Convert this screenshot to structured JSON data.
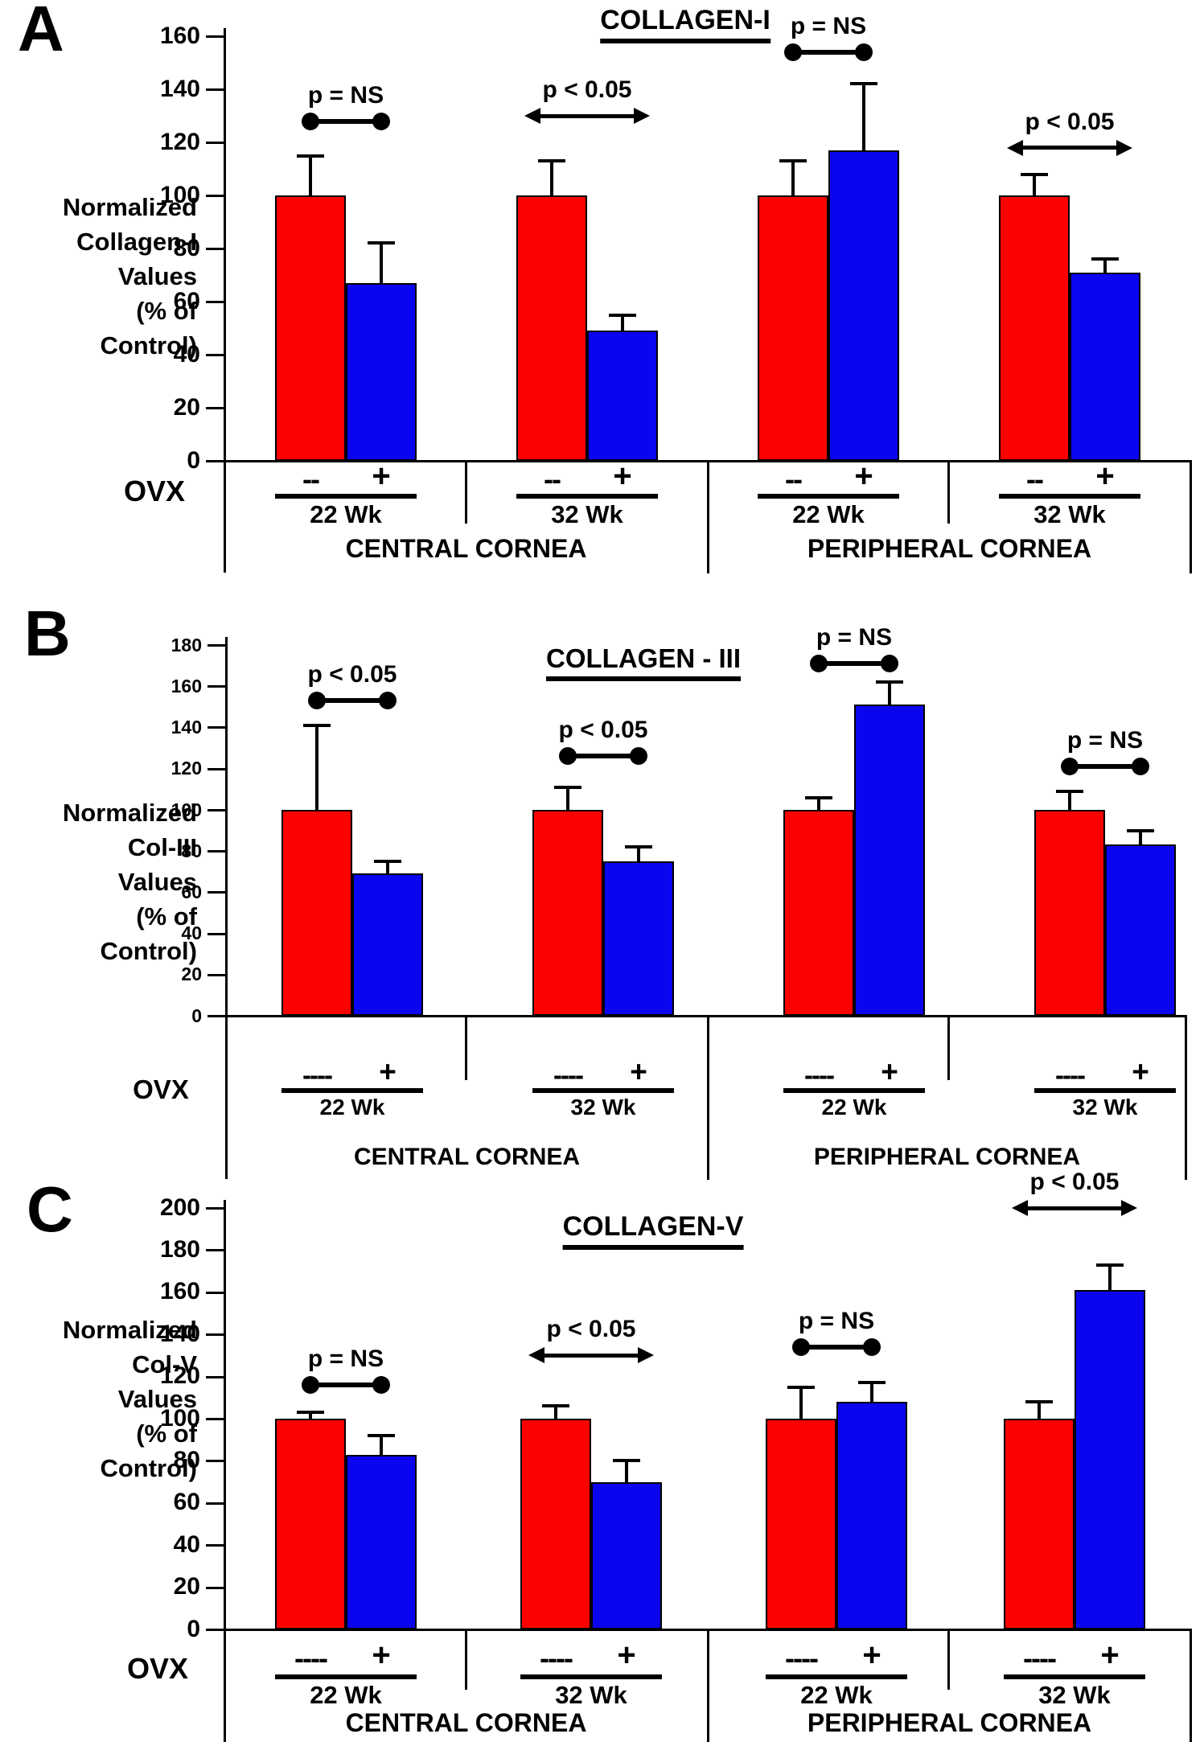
{
  "figure": {
    "background": "#ffffff",
    "text_color": "#000000",
    "control_bar_color": "#fb0100",
    "ovx_bar_color": "#0a04ef"
  },
  "chart_data": [
    {
      "panel": "A",
      "type": "bar",
      "title": "COLLAGEN-I",
      "title_underlined": true,
      "ylabel_lines": [
        "Normalized",
        "Collagen-I",
        "Values",
        "(% of",
        "Control)"
      ],
      "ylim": [
        0,
        160
      ],
      "ytick_step": 20,
      "yticks": [
        0,
        20,
        40,
        60,
        80,
        100,
        120,
        140,
        160
      ],
      "grid": false,
      "legend": "none",
      "xlabel": "OVX",
      "region_labels": [
        "CENTRAL CORNEA",
        "PERIPHERAL CORNEA"
      ],
      "series": [
        {
          "name": "OVX --",
          "color": "#fb0100",
          "values": [
            100,
            100,
            100,
            100
          ],
          "errors_plus": [
            15,
            13,
            13,
            8
          ]
        },
        {
          "name": "OVX +",
          "color": "#0a04ef",
          "values": [
            67,
            49,
            117,
            71
          ],
          "errors_plus": [
            15,
            6,
            25,
            5
          ]
        }
      ],
      "groups": [
        {
          "week": "22 Wk",
          "region": "CENTRAL CORNEA",
          "ovx_minus_symbol": "--",
          "ovx_plus_symbol": "+",
          "p_label": "p = NS",
          "p_marker": "dumbbell",
          "p_line_value": 128
        },
        {
          "week": "32 Wk",
          "region": "CENTRAL CORNEA",
          "ovx_minus_symbol": "--",
          "ovx_plus_symbol": "+",
          "p_label": "p < 0.05",
          "p_marker": "double-arrow",
          "p_line_value": 130
        },
        {
          "week": "22 Wk",
          "region": "PERIPHERAL CORNEA",
          "ovx_minus_symbol": "--",
          "ovx_plus_symbol": "+",
          "p_label": "p = NS",
          "p_marker": "dumbbell",
          "p_line_value": 154
        },
        {
          "week": "32 Wk",
          "region": "PERIPHERAL CORNEA",
          "ovx_minus_symbol": "--",
          "ovx_plus_symbol": "+",
          "p_label": "p < 0.05",
          "p_marker": "double-arrow",
          "p_line_value": 118
        }
      ]
    },
    {
      "panel": "B",
      "type": "bar",
      "title": "COLLAGEN - III",
      "title_underlined": true,
      "ylabel_lines": [
        "Normalized",
        "Col-III",
        "Values",
        "(% of",
        "Control)"
      ],
      "ylim": [
        0,
        180
      ],
      "ytick_step": 20,
      "yticks": [
        0,
        20,
        40,
        60,
        80,
        100,
        120,
        140,
        160,
        180
      ],
      "grid": false,
      "legend": "none",
      "xlabel": "OVX",
      "region_labels": [
        "CENTRAL CORNEA",
        "PERIPHERAL CORNEA"
      ],
      "series": [
        {
          "name": "OVX ----",
          "color": "#fb0100",
          "values": [
            100,
            100,
            100,
            100
          ],
          "errors_plus": [
            41,
            11,
            6,
            9
          ]
        },
        {
          "name": "OVX +",
          "color": "#0a04ef",
          "values": [
            69,
            75,
            151,
            83
          ],
          "errors_plus": [
            6,
            7,
            11,
            7
          ]
        }
      ],
      "groups": [
        {
          "week": "22 Wk",
          "region": "CENTRAL CORNEA",
          "ovx_minus_symbol": "----",
          "ovx_plus_symbol": "+",
          "p_label": "p < 0.05",
          "p_marker": "dumbbell",
          "p_line_value": 153
        },
        {
          "week": "32 Wk",
          "region": "CENTRAL CORNEA",
          "ovx_minus_symbol": "----",
          "ovx_plus_symbol": "+",
          "p_label": "p < 0.05",
          "p_marker": "dumbbell",
          "p_line_value": 126
        },
        {
          "week": "22 Wk",
          "region": "PERIPHERAL CORNEA",
          "ovx_minus_symbol": "----",
          "ovx_plus_symbol": "+",
          "p_label": "p = NS",
          "p_marker": "dumbbell",
          "p_line_value": 171
        },
        {
          "week": "32 Wk",
          "region": "PERIPHERAL CORNEA",
          "ovx_minus_symbol": "----",
          "ovx_plus_symbol": "+",
          "p_label": "p = NS",
          "p_marker": "dumbbell",
          "p_line_value": 121
        }
      ]
    },
    {
      "panel": "C",
      "type": "bar",
      "title": "COLLAGEN-V",
      "title_underlined": true,
      "ylabel_lines": [
        "Normalized",
        "Col-V",
        "Values",
        "(% of",
        "Control)"
      ],
      "ylim": [
        0,
        200
      ],
      "ytick_step": 20,
      "yticks": [
        0,
        20,
        40,
        60,
        80,
        100,
        120,
        140,
        160,
        180,
        200
      ],
      "grid": false,
      "legend": "none",
      "xlabel": "OVX",
      "region_labels": [
        "CENTRAL CORNEA",
        "PERIPHERAL CORNEA"
      ],
      "series": [
        {
          "name": "OVX ----",
          "color": "#fb0100",
          "values": [
            100,
            100,
            100,
            100
          ],
          "errors_plus": [
            3,
            6,
            15,
            8
          ]
        },
        {
          "name": "OVX +",
          "color": "#0a04ef",
          "values": [
            83,
            70,
            108,
            161
          ],
          "errors_plus": [
            9,
            10,
            9,
            12
          ]
        }
      ],
      "groups": [
        {
          "week": "22 Wk",
          "region": "CENTRAL CORNEA",
          "ovx_minus_symbol": "----",
          "ovx_plus_symbol": "+",
          "p_label": "p = NS",
          "p_marker": "dumbbell",
          "p_line_value": 116
        },
        {
          "week": "32 Wk",
          "region": "CENTRAL CORNEA",
          "ovx_minus_symbol": "----",
          "ovx_plus_symbol": "+",
          "p_label": "p < 0.05",
          "p_marker": "double-arrow",
          "p_line_value": 130
        },
        {
          "week": "22 Wk",
          "region": "PERIPHERAL CORNEA",
          "ovx_minus_symbol": "----",
          "ovx_plus_symbol": "+",
          "p_label": "p = NS",
          "p_marker": "dumbbell",
          "p_line_value": 134
        },
        {
          "week": "32 Wk",
          "region": "PERIPHERAL CORNEA",
          "ovx_minus_symbol": "----",
          "ovx_plus_symbol": "+",
          "p_label": "p < 0.05",
          "p_marker": "double-arrow",
          "p_line_value": 200
        }
      ]
    }
  ]
}
